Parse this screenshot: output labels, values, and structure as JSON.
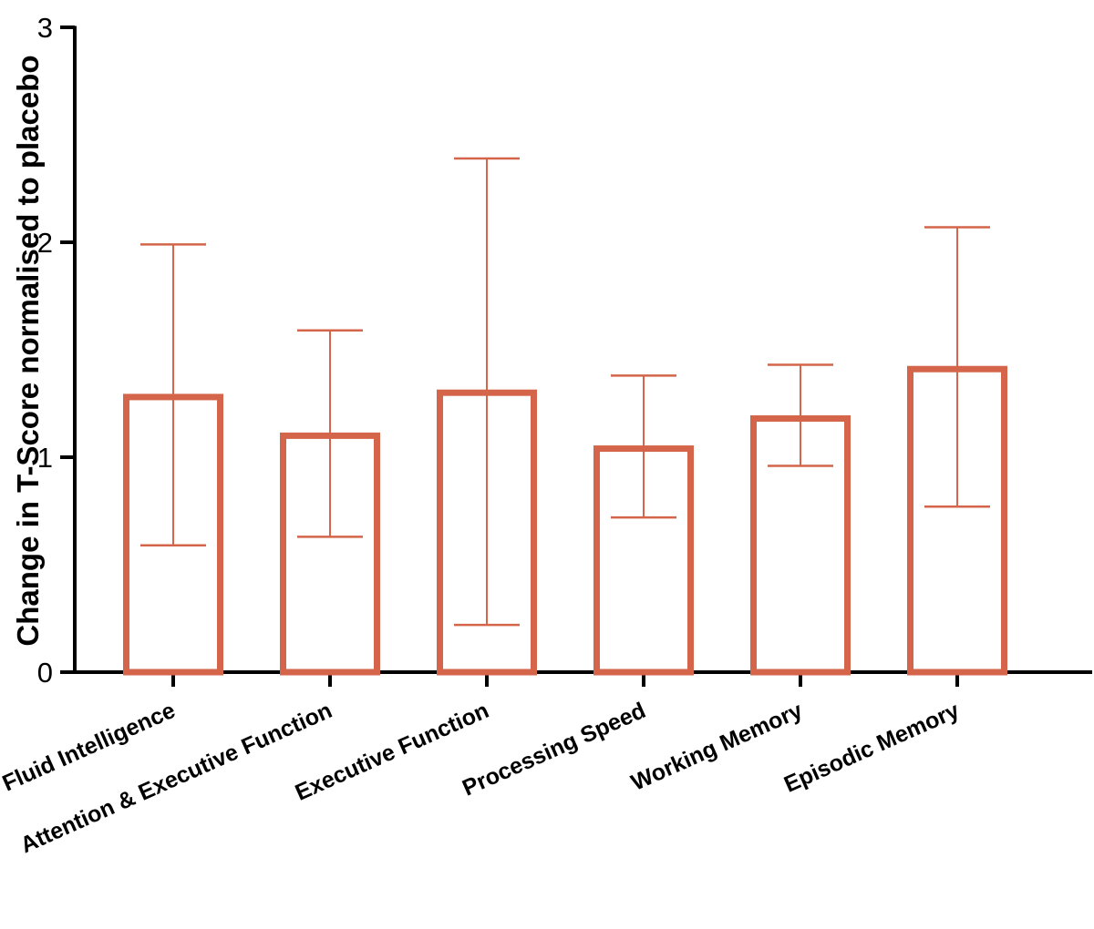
{
  "chart_data": {
    "type": "bar",
    "title": "",
    "xlabel": "",
    "ylabel": "Change in T-Score normalised to placebo",
    "ylim": [
      0,
      3
    ],
    "yticks": [
      0,
      1,
      2,
      3
    ],
    "grid": false,
    "legend": "none",
    "categories": [
      "Fluid Intelligence",
      "Attention & Executive Function",
      "Executive Function",
      "Processing Speed",
      "Working Memory",
      "Episodic Memory"
    ],
    "values": [
      1.28,
      1.1,
      1.3,
      1.04,
      1.18,
      1.41
    ],
    "error_low": [
      0.59,
      0.63,
      0.22,
      0.72,
      0.96,
      0.77
    ],
    "error_high": [
      1.99,
      1.59,
      2.39,
      1.38,
      1.43,
      2.07
    ],
    "colors": {
      "bar": "#D4654A",
      "axis": "#000000"
    }
  }
}
